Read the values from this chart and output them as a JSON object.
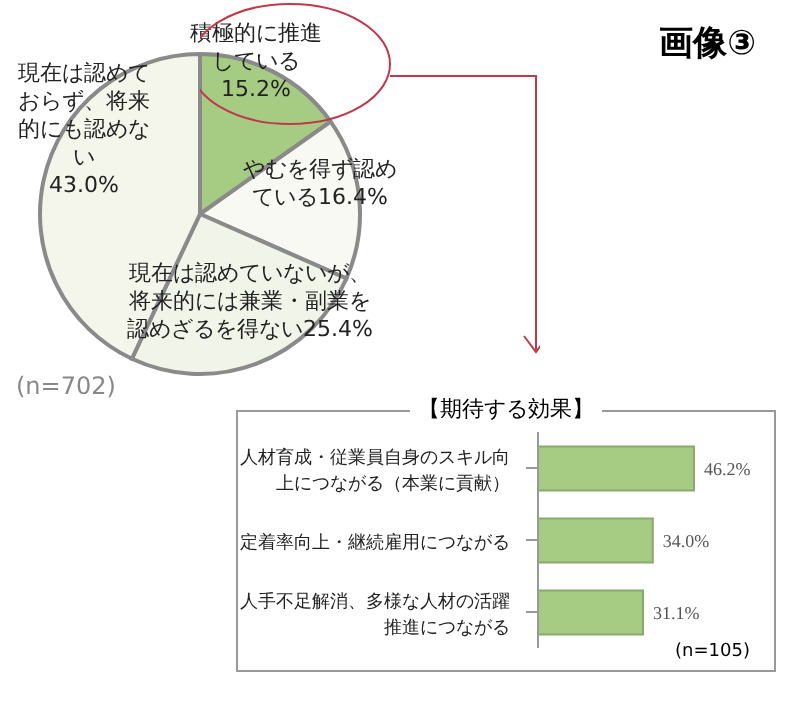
{
  "chart_data": [
    {
      "type": "pie",
      "title": "画像③",
      "categories": [
        "積極的に推進している",
        "やむを得ず認めている",
        "現在は認めていないが、将来的には兼業・副業を認めざるを得ない",
        "現在は認めておらず、将来的にも認めない"
      ],
      "values": [
        15.2,
        16.4,
        25.4,
        43.0
      ],
      "colors": [
        "#a6cc84",
        "#f7f9f2",
        "#f1f4e8",
        "#f4f6ec"
      ],
      "value_labels": [
        "15.2%",
        "16.4%",
        "25.4%",
        "43.0%"
      ],
      "annotations": [
        "(n=702)"
      ]
    },
    {
      "type": "bar",
      "orientation": "horizontal",
      "title": "【期待する効果】",
      "categories": [
        "人材育成・従業員自身のスキル向上につながる（本業に貢献）",
        "定着率向上・継続雇用につながる",
        "人手不足解消、多様な人材の活躍推進につながる"
      ],
      "values": [
        46.2,
        34.0,
        31.1
      ],
      "color": "#a6cc84",
      "value_labels": [
        "46.2%",
        "34.0%",
        "31.1%"
      ],
      "annotations": [
        "(n=105)"
      ]
    }
  ]
}
